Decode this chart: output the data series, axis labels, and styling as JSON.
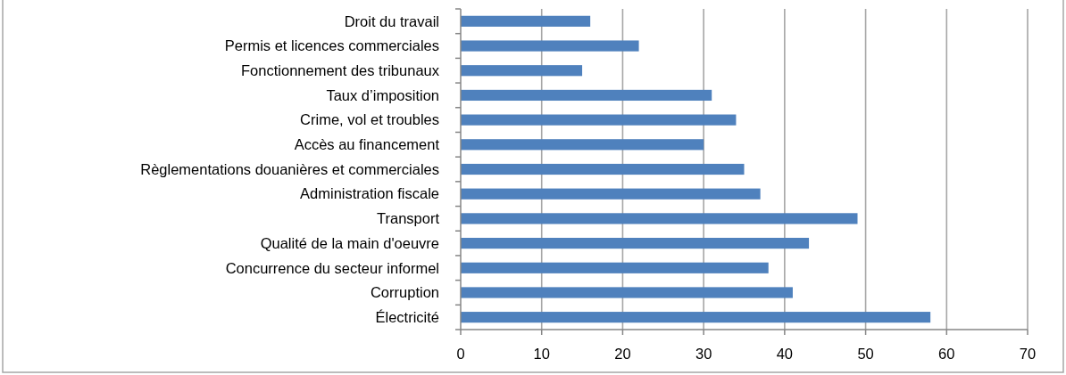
{
  "chart_data": {
    "type": "bar",
    "orientation": "horizontal",
    "categories": [
      "Droit du travail",
      "Permis et licences commerciales",
      "Fonctionnement des tribunaux",
      "Taux d’imposition",
      "Crime, vol et troubles",
      "Accès au financement",
      "Règlementations douanières et commerciales",
      "Administration fiscale",
      "Transport",
      "Qualité de la main d'oeuvre",
      "Concurrence du secteur informel",
      "Corruption",
      "Électricité"
    ],
    "values": [
      16,
      22,
      15,
      31,
      34,
      30,
      35,
      37,
      49,
      43,
      38,
      41,
      58
    ],
    "color": "#4f81bd",
    "xlim": [
      0,
      70
    ],
    "xticks": [
      0,
      10,
      20,
      30,
      40,
      50,
      60,
      70
    ],
    "grid": "x"
  }
}
